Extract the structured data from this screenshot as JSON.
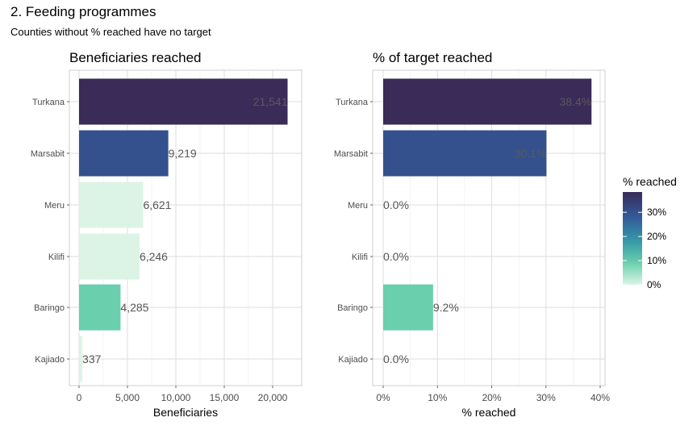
{
  "title": "2. Feeding programmes",
  "subtitle": "Counties without % reached have no target",
  "colors": {
    "zero": "#dcf4e6",
    "low": "#6ad0ad",
    "mid": "#335a9b",
    "high": "#3a2b58",
    "grid": "#dedede",
    "label_dark": "#555555"
  },
  "chart_data": [
    {
      "type": "bar",
      "orientation": "horizontal",
      "title": "Beneficiaries reached",
      "xlabel": "Beneficiaries",
      "categories": [
        "Turkana",
        "Marsabit",
        "Meru",
        "Kilifi",
        "Baringo",
        "Kajiado"
      ],
      "values": [
        21541,
        9219,
        6621,
        6246,
        4285,
        337
      ],
      "data_labels": [
        "21,541",
        "9,219",
        "6,621",
        "6,246",
        "4,285",
        "337"
      ],
      "xlim": [
        0,
        22000
      ],
      "ticks": [
        0,
        5000,
        10000,
        15000,
        20000
      ],
      "tick_labels": [
        "0",
        "5,000",
        "10,000",
        "15,000",
        "20,000"
      ],
      "fill_by": "pct_reached",
      "grid": true
    },
    {
      "type": "bar",
      "orientation": "horizontal",
      "title": "% of target reached",
      "xlabel": "% reached",
      "categories": [
        "Turkana",
        "Marsabit",
        "Meru",
        "Kilifi",
        "Baringo",
        "Kajiado"
      ],
      "values": [
        38.4,
        30.1,
        0.0,
        0.0,
        9.2,
        0.0
      ],
      "data_labels": [
        "38.4%",
        "30.1%",
        "0.0%",
        "0.0%",
        "9.2%",
        "0.0%"
      ],
      "xlim": [
        0,
        40
      ],
      "ticks": [
        0,
        10,
        20,
        30,
        40
      ],
      "tick_labels": [
        "0%",
        "10%",
        "20%",
        "30%",
        "40%"
      ],
      "grid": true
    }
  ],
  "legend": {
    "title": "% reached",
    "position": "right",
    "tick_labels": [
      "30%",
      "20%",
      "10%",
      "0%"
    ],
    "tick_values": [
      30,
      20,
      10,
      0
    ],
    "range": [
      0,
      38.4
    ]
  }
}
